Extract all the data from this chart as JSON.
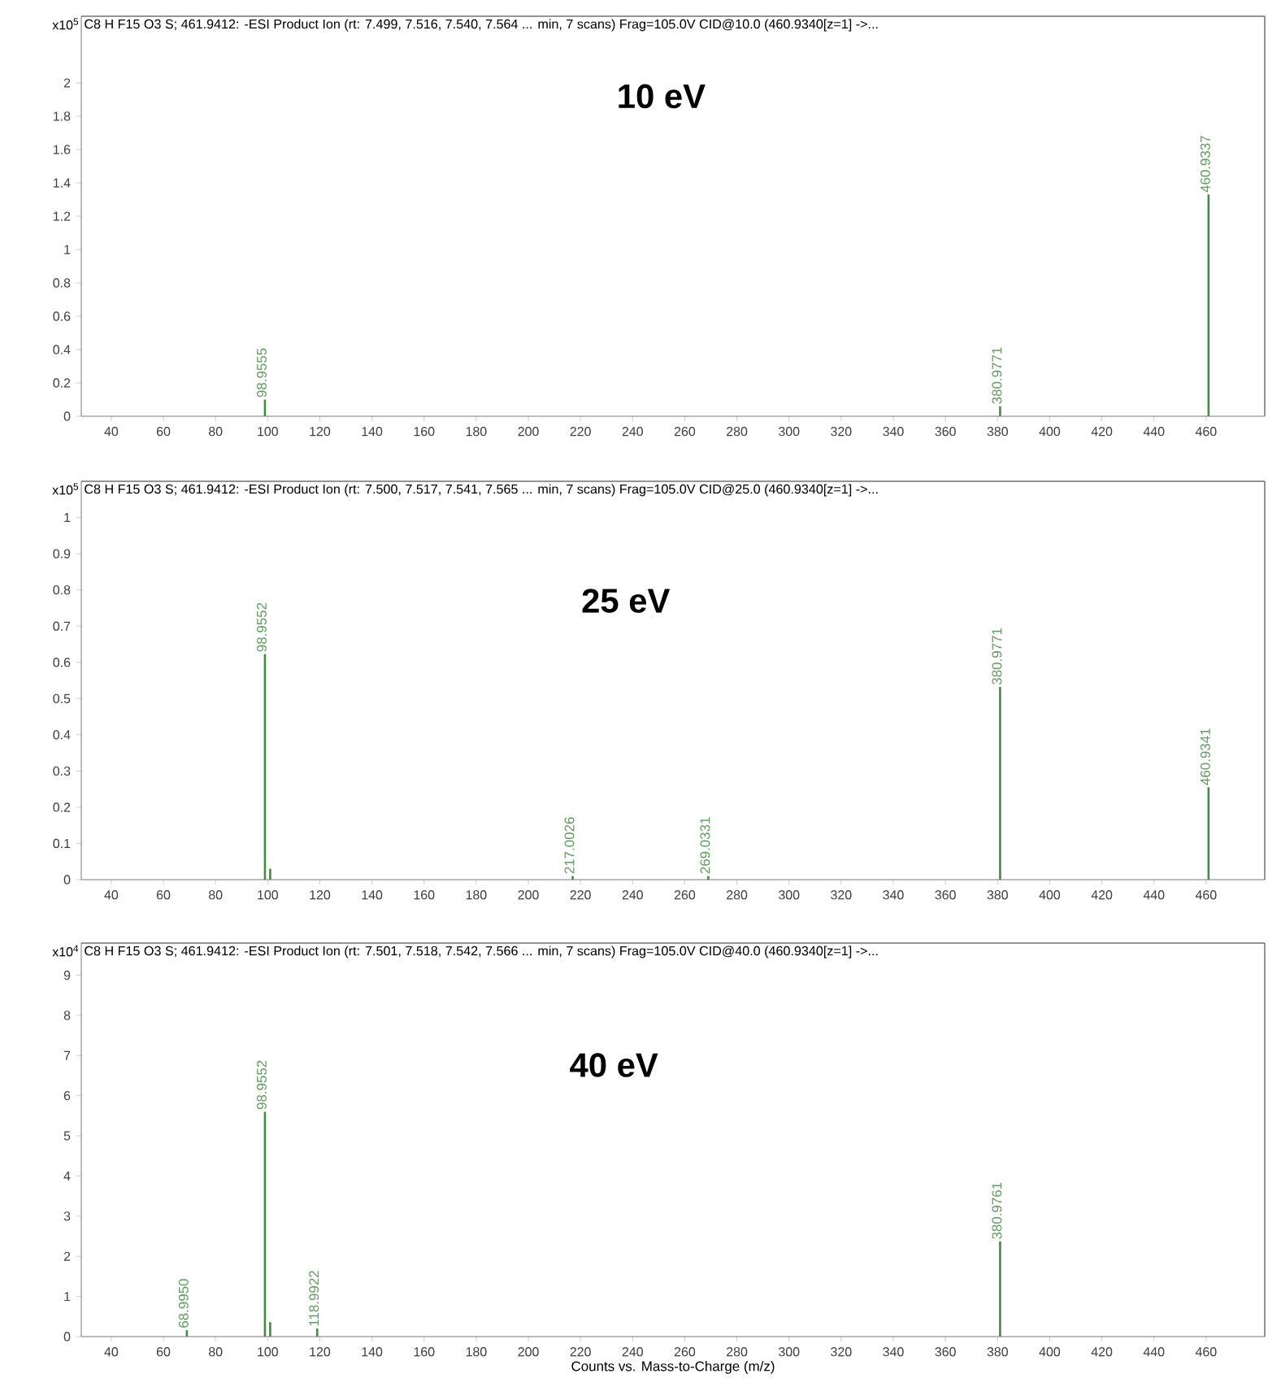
{
  "chart_data": [
    {
      "type": "bar",
      "title": "C8 H F15 O3 S; 461.9412: -ESI Product Ion (rt: 7.499, 7.516, 7.540, 7.564 ... min, 7 scans) Frag=105.0V CID@10.0 (460.9340[z=1] ->...",
      "subtitle": "10 eV",
      "ylabel": "x10$^{5}$",
      "x": [
        98.9555,
        380.9771,
        460.9337
      ],
      "values": [
        0.1,
        0.06,
        1.33
      ],
      "color": "#3f8f3f",
      "xlim": [
        28.5,
        482.5
      ],
      "ylim": [
        0,
        2.4
      ],
      "xticks": [
        40,
        60,
        80,
        100,
        120,
        140,
        160,
        180,
        200,
        220,
        240,
        260,
        280,
        300,
        320,
        340,
        360,
        380,
        400,
        420,
        440,
        460
      ],
      "yticks": [
        0,
        0.2,
        0.4,
        0.6,
        0.8,
        1,
        1.2,
        1.4,
        1.6,
        1.8,
        2
      ],
      "annotations": [
        {
          "text": "98.9555",
          "x": 98.9555,
          "y": 0.1
        },
        {
          "text": "380.9771",
          "x": 380.9771,
          "y": 0.06
        },
        {
          "text": "460.9337",
          "x": 460.9337,
          "y": 1.33
        }
      ]
    },
    {
      "type": "bar",
      "title": "C8 H F15 O3 S; 461.9412: -ESI Product Ion (rt: 7.500, 7.517, 7.541, 7.565 ... min, 7 scans) Frag=105.0V CID@25.0 (460.9340[z=1] ->...",
      "subtitle": "25 eV",
      "ylabel": "x10$^{5}$",
      "x": [
        98.9552,
        100.96,
        217.0026,
        269.0331,
        380.9771,
        460.9341
      ],
      "values": [
        0.623,
        0.03,
        0.01,
        0.01,
        0.532,
        0.255
      ],
      "color": "#3f8f3f",
      "xlim": [
        28.5,
        482.5
      ],
      "ylim": [
        0,
        1.1
      ],
      "xticks": [
        40,
        60,
        80,
        100,
        120,
        140,
        160,
        180,
        200,
        220,
        240,
        260,
        280,
        300,
        320,
        340,
        360,
        380,
        400,
        420,
        440,
        460
      ],
      "yticks": [
        0,
        0.1,
        0.2,
        0.3,
        0.4,
        0.5,
        0.6,
        0.7,
        0.8,
        0.9,
        1
      ],
      "annotations": [
        {
          "text": "98.9552",
          "x": 98.9552,
          "y": 0.623
        },
        {
          "text": "217.0026",
          "x": 217.0026,
          "y": 0.01
        },
        {
          "text": "269.0331",
          "x": 269.0331,
          "y": 0.01
        },
        {
          "text": "380.9771",
          "x": 380.9771,
          "y": 0.532
        },
        {
          "text": "460.9341",
          "x": 460.9341,
          "y": 0.255
        }
      ]
    },
    {
      "type": "bar",
      "title": "C8 H F15 O3 S; 461.9412: -ESI Product Ion (rt: 7.501, 7.518, 7.542, 7.566 ... min, 7 scans) Frag=105.0V CID@40.0 (460.9340[z=1] ->...",
      "subtitle": "40 eV",
      "ylabel": "x10$^{4}$",
      "xlabel": "Counts vs. Mass-to-Charge (m/z)",
      "x": [
        68.995,
        98.9552,
        100.96,
        118.9922,
        380.9761
      ],
      "values": [
        0.16,
        5.6,
        0.36,
        0.2,
        2.37
      ],
      "color": "#3f8f3f",
      "xlim": [
        28.5,
        482.5
      ],
      "ylim": [
        0,
        9.8
      ],
      "xticks": [
        40,
        60,
        80,
        100,
        120,
        140,
        160,
        180,
        200,
        220,
        240,
        260,
        280,
        300,
        320,
        340,
        360,
        380,
        400,
        420,
        440,
        460
      ],
      "yticks": [
        0,
        1,
        2,
        3,
        4,
        5,
        6,
        7,
        8,
        9
      ],
      "annotations": [
        {
          "text": "68.9950",
          "x": 68.995,
          "y": 0.16
        },
        {
          "text": "98.9552",
          "x": 98.9552,
          "y": 5.6
        },
        {
          "text": "118.9922",
          "x": 118.9922,
          "y": 0.2
        },
        {
          "text": "380.9761",
          "x": 380.9761,
          "y": 2.37
        }
      ]
    }
  ]
}
